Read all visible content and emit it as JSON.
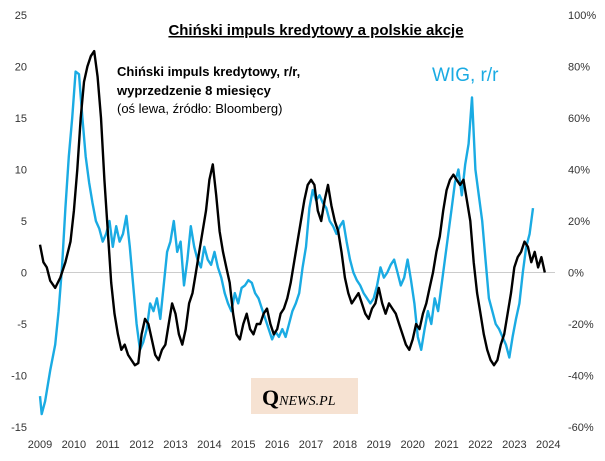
{
  "chart_data": {
    "type": "line",
    "title": "Chiński impuls kredytowy a polskie akcje",
    "annotation": {
      "line1": "Chiński impuls kredytowy, r/r,",
      "line2": "wyprzedzenie 8 miesięcy",
      "line3": "(oś lewa, źródło: Bloomberg)"
    },
    "wig_label": "WIG, r/r",
    "watermark": {
      "initial": "Q",
      "rest": "NEWS.PL"
    },
    "x_ticks": [
      "2009",
      "2010",
      "2011",
      "2012",
      "2013",
      "2014",
      "2015",
      "2016",
      "2017",
      "2018",
      "2019",
      "2020",
      "2021",
      "2022",
      "2023",
      "2024"
    ],
    "xlim": [
      2009,
      2024.2
    ],
    "y_left": {
      "lim": [
        -15,
        25
      ],
      "ticks": [
        "-15",
        "-10",
        "-5",
        "0",
        "5",
        "10",
        "15",
        "20",
        "25"
      ]
    },
    "y_right": {
      "lim": [
        -60,
        100
      ],
      "ticks": [
        "-60%",
        "-40%",
        "-20%",
        "0%",
        "20%",
        "40%",
        "60%",
        "80%",
        "100%"
      ]
    },
    "series": [
      {
        "name": "Chiński impuls kredytowy, r/r, wyprzedzenie 8 miesięcy",
        "axis": "left",
        "color": "#000000",
        "points": [
          [
            2009.0,
            2.7
          ],
          [
            2009.1,
            1.0
          ],
          [
            2009.2,
            0.5
          ],
          [
            2009.3,
            -0.8
          ],
          [
            2009.45,
            -1.5
          ],
          [
            2009.6,
            -0.5
          ],
          [
            2009.75,
            1.0
          ],
          [
            2009.9,
            3.0
          ],
          [
            2010.0,
            6.0
          ],
          [
            2010.1,
            10.0
          ],
          [
            2010.2,
            15.0
          ],
          [
            2010.3,
            18.5
          ],
          [
            2010.4,
            20.0
          ],
          [
            2010.5,
            21.0
          ],
          [
            2010.6,
            21.5
          ],
          [
            2010.7,
            19.0
          ],
          [
            2010.8,
            15.0
          ],
          [
            2010.9,
            9.0
          ],
          [
            2011.0,
            4.0
          ],
          [
            2011.1,
            -1.0
          ],
          [
            2011.2,
            -4.0
          ],
          [
            2011.3,
            -6.0
          ],
          [
            2011.4,
            -7.5
          ],
          [
            2011.5,
            -7.0
          ],
          [
            2011.6,
            -8.0
          ],
          [
            2011.7,
            -8.5
          ],
          [
            2011.8,
            -9.0
          ],
          [
            2011.9,
            -8.8
          ],
          [
            2012.0,
            -6.0
          ],
          [
            2012.1,
            -4.5
          ],
          [
            2012.2,
            -5.0
          ],
          [
            2012.3,
            -6.5
          ],
          [
            2012.4,
            -8.0
          ],
          [
            2012.5,
            -8.5
          ],
          [
            2012.6,
            -7.5
          ],
          [
            2012.7,
            -7.0
          ],
          [
            2012.8,
            -5.0
          ],
          [
            2012.9,
            -3.0
          ],
          [
            2013.0,
            -4.0
          ],
          [
            2013.1,
            -6.0
          ],
          [
            2013.2,
            -7.0
          ],
          [
            2013.3,
            -5.5
          ],
          [
            2013.4,
            -3.0
          ],
          [
            2013.5,
            -2.0
          ],
          [
            2013.6,
            0.0
          ],
          [
            2013.7,
            2.0
          ],
          [
            2013.8,
            4.0
          ],
          [
            2013.9,
            6.0
          ],
          [
            2014.0,
            9.0
          ],
          [
            2014.1,
            10.5
          ],
          [
            2014.2,
            7.5
          ],
          [
            2014.3,
            4.0
          ],
          [
            2014.4,
            2.0
          ],
          [
            2014.5,
            0.5
          ],
          [
            2014.6,
            -1.0
          ],
          [
            2014.7,
            -4.0
          ],
          [
            2014.8,
            -6.0
          ],
          [
            2014.9,
            -6.5
          ],
          [
            2015.0,
            -5.0
          ],
          [
            2015.1,
            -4.0
          ],
          [
            2015.2,
            -5.5
          ],
          [
            2015.3,
            -6.0
          ],
          [
            2015.4,
            -5.0
          ],
          [
            2015.5,
            -5.0
          ],
          [
            2015.6,
            -4.0
          ],
          [
            2015.7,
            -3.5
          ],
          [
            2015.8,
            -5.0
          ],
          [
            2015.9,
            -6.0
          ],
          [
            2016.0,
            -5.5
          ],
          [
            2016.1,
            -4.0
          ],
          [
            2016.2,
            -3.5
          ],
          [
            2016.3,
            -2.5
          ],
          [
            2016.4,
            -1.0
          ],
          [
            2016.5,
            1.0
          ],
          [
            2016.6,
            3.0
          ],
          [
            2016.7,
            5.0
          ],
          [
            2016.8,
            7.0
          ],
          [
            2016.9,
            8.5
          ],
          [
            2017.0,
            9.0
          ],
          [
            2017.1,
            8.5
          ],
          [
            2017.2,
            6.0
          ],
          [
            2017.3,
            5.0
          ],
          [
            2017.4,
            7.0
          ],
          [
            2017.5,
            8.5
          ],
          [
            2017.6,
            6.5
          ],
          [
            2017.7,
            5.0
          ],
          [
            2017.8,
            4.0
          ],
          [
            2017.9,
            2.0
          ],
          [
            2018.0,
            -0.5
          ],
          [
            2018.1,
            -2.0
          ],
          [
            2018.2,
            -3.0
          ],
          [
            2018.3,
            -2.5
          ],
          [
            2018.4,
            -2.0
          ],
          [
            2018.5,
            -3.0
          ],
          [
            2018.6,
            -4.0
          ],
          [
            2018.7,
            -4.5
          ],
          [
            2018.8,
            -3.5
          ],
          [
            2018.9,
            -3.0
          ],
          [
            2019.0,
            -1.5
          ],
          [
            2019.1,
            -3.0
          ],
          [
            2019.2,
            -4.0
          ],
          [
            2019.3,
            -3.0
          ],
          [
            2019.4,
            -3.5
          ],
          [
            2019.5,
            -4.0
          ],
          [
            2019.6,
            -5.0
          ],
          [
            2019.7,
            -6.0
          ],
          [
            2019.8,
            -7.0
          ],
          [
            2019.9,
            -7.5
          ],
          [
            2020.0,
            -6.5
          ],
          [
            2020.1,
            -5.0
          ],
          [
            2020.2,
            -5.5
          ],
          [
            2020.3,
            -4.0
          ],
          [
            2020.4,
            -3.0
          ],
          [
            2020.5,
            -1.5
          ],
          [
            2020.6,
            0.0
          ],
          [
            2020.7,
            2.0
          ],
          [
            2020.8,
            3.5
          ],
          [
            2020.9,
            6.0
          ],
          [
            2021.0,
            8.0
          ],
          [
            2021.1,
            9.0
          ],
          [
            2021.2,
            9.5
          ],
          [
            2021.3,
            9.0
          ],
          [
            2021.4,
            8.5
          ],
          [
            2021.5,
            9.0
          ],
          [
            2021.6,
            7.0
          ],
          [
            2021.7,
            5.0
          ],
          [
            2021.8,
            1.0
          ],
          [
            2021.9,
            -2.0
          ],
          [
            2022.0,
            -4.0
          ],
          [
            2022.1,
            -6.0
          ],
          [
            2022.2,
            -7.5
          ],
          [
            2022.3,
            -8.5
          ],
          [
            2022.4,
            -9.0
          ],
          [
            2022.5,
            -8.5
          ],
          [
            2022.6,
            -7.0
          ],
          [
            2022.7,
            -6.0
          ],
          [
            2022.8,
            -4.0
          ],
          [
            2022.9,
            -2.0
          ],
          [
            2023.0,
            0.5
          ],
          [
            2023.1,
            1.5
          ],
          [
            2023.2,
            2.0
          ],
          [
            2023.3,
            3.0
          ],
          [
            2023.4,
            2.5
          ],
          [
            2023.5,
            1.0
          ],
          [
            2023.6,
            2.0
          ],
          [
            2023.7,
            0.5
          ],
          [
            2023.8,
            1.5
          ],
          [
            2023.9,
            0.0
          ]
        ]
      },
      {
        "name": "WIG, r/r",
        "axis": "right",
        "color": "#1aabe3",
        "points": [
          [
            2009.0,
            -48
          ],
          [
            2009.05,
            -55
          ],
          [
            2009.15,
            -50
          ],
          [
            2009.3,
            -38
          ],
          [
            2009.45,
            -28
          ],
          [
            2009.55,
            -15
          ],
          [
            2009.65,
            2
          ],
          [
            2009.75,
            25
          ],
          [
            2009.85,
            45
          ],
          [
            2009.95,
            60
          ],
          [
            2010.05,
            78
          ],
          [
            2010.15,
            77
          ],
          [
            2010.25,
            60
          ],
          [
            2010.35,
            45
          ],
          [
            2010.45,
            35
          ],
          [
            2010.55,
            27
          ],
          [
            2010.65,
            20
          ],
          [
            2010.75,
            17
          ],
          [
            2010.85,
            12
          ],
          [
            2010.95,
            15
          ],
          [
            2011.05,
            20
          ],
          [
            2011.15,
            10
          ],
          [
            2011.25,
            18
          ],
          [
            2011.35,
            12
          ],
          [
            2011.45,
            15
          ],
          [
            2011.55,
            22
          ],
          [
            2011.65,
            10
          ],
          [
            2011.75,
            -5
          ],
          [
            2011.85,
            -20
          ],
          [
            2011.95,
            -30
          ],
          [
            2012.05,
            -27
          ],
          [
            2012.15,
            -22
          ],
          [
            2012.25,
            -12
          ],
          [
            2012.35,
            -15
          ],
          [
            2012.45,
            -10
          ],
          [
            2012.55,
            -18
          ],
          [
            2012.65,
            -5
          ],
          [
            2012.75,
            8
          ],
          [
            2012.85,
            12
          ],
          [
            2012.95,
            20
          ],
          [
            2013.05,
            8
          ],
          [
            2013.15,
            12
          ],
          [
            2013.25,
            -5
          ],
          [
            2013.35,
            5
          ],
          [
            2013.45,
            18
          ],
          [
            2013.55,
            10
          ],
          [
            2013.65,
            5
          ],
          [
            2013.75,
            2
          ],
          [
            2013.85,
            10
          ],
          [
            2013.95,
            5
          ],
          [
            2014.05,
            3
          ],
          [
            2014.15,
            8
          ],
          [
            2014.25,
            2
          ],
          [
            2014.35,
            -2
          ],
          [
            2014.45,
            -8
          ],
          [
            2014.55,
            -12
          ],
          [
            2014.65,
            -15
          ],
          [
            2014.75,
            -8
          ],
          [
            2014.85,
            -12
          ],
          [
            2014.95,
            -6
          ],
          [
            2015.05,
            -5
          ],
          [
            2015.15,
            -3
          ],
          [
            2015.25,
            -4
          ],
          [
            2015.35,
            -8
          ],
          [
            2015.45,
            -10
          ],
          [
            2015.55,
            -14
          ],
          [
            2015.65,
            -18
          ],
          [
            2015.75,
            -22
          ],
          [
            2015.85,
            -26
          ],
          [
            2015.95,
            -23
          ],
          [
            2016.05,
            -25
          ],
          [
            2016.15,
            -22
          ],
          [
            2016.25,
            -25
          ],
          [
            2016.35,
            -20
          ],
          [
            2016.45,
            -15
          ],
          [
            2016.55,
            -12
          ],
          [
            2016.65,
            -8
          ],
          [
            2016.75,
            2
          ],
          [
            2016.85,
            10
          ],
          [
            2016.95,
            25
          ],
          [
            2017.05,
            32
          ],
          [
            2017.15,
            28
          ],
          [
            2017.25,
            30
          ],
          [
            2017.35,
            27
          ],
          [
            2017.45,
            25
          ],
          [
            2017.55,
            20
          ],
          [
            2017.65,
            18
          ],
          [
            2017.75,
            15
          ],
          [
            2017.85,
            18
          ],
          [
            2017.95,
            20
          ],
          [
            2018.05,
            12
          ],
          [
            2018.15,
            5
          ],
          [
            2018.25,
            0
          ],
          [
            2018.35,
            -3
          ],
          [
            2018.45,
            -5
          ],
          [
            2018.55,
            -8
          ],
          [
            2018.65,
            -10
          ],
          [
            2018.75,
            -12
          ],
          [
            2018.85,
            -10
          ],
          [
            2018.95,
            -5
          ],
          [
            2019.05,
            2
          ],
          [
            2019.15,
            -2
          ],
          [
            2019.25,
            0
          ],
          [
            2019.35,
            3
          ],
          [
            2019.45,
            5
          ],
          [
            2019.55,
            0
          ],
          [
            2019.65,
            -5
          ],
          [
            2019.75,
            -2
          ],
          [
            2019.85,
            5
          ],
          [
            2019.95,
            -3
          ],
          [
            2020.05,
            -12
          ],
          [
            2020.15,
            -25
          ],
          [
            2020.25,
            -30
          ],
          [
            2020.35,
            -22
          ],
          [
            2020.45,
            -15
          ],
          [
            2020.55,
            -20
          ],
          [
            2020.65,
            -10
          ],
          [
            2020.75,
            -15
          ],
          [
            2020.85,
            -5
          ],
          [
            2020.95,
            5
          ],
          [
            2021.05,
            15
          ],
          [
            2021.15,
            25
          ],
          [
            2021.25,
            35
          ],
          [
            2021.35,
            40
          ],
          [
            2021.45,
            30
          ],
          [
            2021.55,
            42
          ],
          [
            2021.65,
            50
          ],
          [
            2021.75,
            68
          ],
          [
            2021.85,
            40
          ],
          [
            2021.95,
            30
          ],
          [
            2022.05,
            20
          ],
          [
            2022.15,
            5
          ],
          [
            2022.25,
            -10
          ],
          [
            2022.35,
            -15
          ],
          [
            2022.45,
            -20
          ],
          [
            2022.55,
            -22
          ],
          [
            2022.65,
            -25
          ],
          [
            2022.75,
            -28
          ],
          [
            2022.85,
            -33
          ],
          [
            2022.95,
            -25
          ],
          [
            2023.05,
            -18
          ],
          [
            2023.15,
            -12
          ],
          [
            2023.25,
            0
          ],
          [
            2023.35,
            10
          ],
          [
            2023.45,
            15
          ],
          [
            2023.55,
            25
          ]
        ]
      }
    ]
  }
}
